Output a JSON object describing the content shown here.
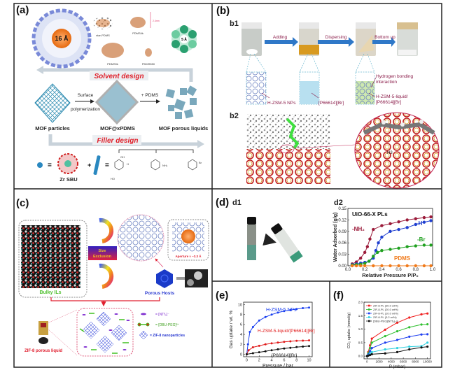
{
  "panel_a": {
    "label": "(a)",
    "pore_16": "16 Å",
    "pore_5": "5 Å",
    "star_pdms": "star-PDMS",
    "pdms4k": "PDMS4k",
    "pdms9k": "PDMS9k",
    "pdms550": "PDMS550",
    "scale": "2.4nm",
    "solvent_design": "Solvent design",
    "surface": "Surface",
    "polymerization": "polymerization",
    "plus_pdms": "+ PDMS",
    "mof_particles": "MOF particles",
    "mof_xpdms": "MOF@xPDMS",
    "mof_pl": "MOF porous liquids",
    "filler_design": "Filler design",
    "zr_sbu": "Zr SBU",
    "equals": "=",
    "plus": "+",
    "substituents": [
      "H",
      "NH₂",
      "Br"
    ],
    "oh": "OH",
    "ho": "HO"
  },
  "panel_b": {
    "label": "(b)",
    "b1": "b1",
    "b2": "b2",
    "adding": "Adding",
    "dispersing": "Dispersing",
    "bottom_up": "Bottom up",
    "hbond": "Hydrogen bonding",
    "hbond2": "interaction",
    "nps": "H-ZSM-5 NPs",
    "il": "[P66614][Br]",
    "liquid1": "H-ZSM-5-liquid/",
    "liquid2": "[P66614][Br]",
    "h3": "H3"
  },
  "panel_c": {
    "label": "(c)",
    "size": "Size",
    "exclusion": "Exclusion",
    "aperture": "Aperture ≈ ~3.3 Å",
    "bulky": "Bulky ILs",
    "hosts": "Porous Hosts",
    "zif_pl": "ZIF-8 porous liquid",
    "legend": [
      "= [NTf₂]⁻",
      "= [DBU-PEG]²⁺",
      "= ZIF-8 nanoparticles"
    ]
  },
  "panel_d": {
    "label": "(d)",
    "d1": "d1",
    "d2": "d2"
  },
  "panel_e": {
    "label": "(e)"
  },
  "panel_f": {
    "label": "(f)"
  },
  "chart_data": [
    {
      "id": "d2",
      "type": "line",
      "title": "UiO-66-X PLs",
      "xlabel": "Relative Pressure P/P₀",
      "ylabel": "Water Adsorbed (g/g)",
      "xlim": [
        0,
        1.0
      ],
      "ylim": [
        0,
        0.15
      ],
      "xticks": [
        0.0,
        0.2,
        0.4,
        0.6,
        0.8,
        1.0
      ],
      "xtick_labels": [
        "0.0",
        "0.2",
        "0.4",
        "0.6",
        "0.8",
        "1.0"
      ],
      "yticks": [
        0,
        0.03,
        0.06,
        0.09,
        0.12,
        0.15
      ],
      "ytick_labels": [
        "0.00",
        "0.03",
        "0.06",
        "0.09",
        "0.12",
        "0.15"
      ],
      "series": [
        {
          "name": "-NH₂",
          "color": "#9b1b3a",
          "x": [
            0.05,
            0.1,
            0.15,
            0.2,
            0.23,
            0.26,
            0.3,
            0.4,
            0.5,
            0.6,
            0.7,
            0.8,
            0.9,
            0.98
          ],
          "y": [
            0.005,
            0.01,
            0.02,
            0.035,
            0.05,
            0.07,
            0.095,
            0.105,
            0.11,
            0.115,
            0.12,
            0.123,
            0.126,
            0.128
          ]
        },
        {
          "name": "-H",
          "color": "#1f3fd0",
          "x": [
            0.05,
            0.1,
            0.15,
            0.2,
            0.25,
            0.3,
            0.33,
            0.36,
            0.4,
            0.5,
            0.6,
            0.7,
            0.8,
            0.9,
            0.98
          ],
          "y": [
            0.003,
            0.005,
            0.007,
            0.009,
            0.012,
            0.02,
            0.04,
            0.06,
            0.075,
            0.09,
            0.095,
            0.1,
            0.108,
            0.114,
            0.118
          ]
        },
        {
          "name": "-Br",
          "color": "#1fa01f",
          "x": [
            0.05,
            0.1,
            0.15,
            0.2,
            0.25,
            0.3,
            0.35,
            0.4,
            0.5,
            0.6,
            0.7,
            0.8,
            0.9,
            0.98
          ],
          "y": [
            0.002,
            0.003,
            0.004,
            0.006,
            0.012,
            0.025,
            0.035,
            0.04,
            0.043,
            0.046,
            0.05,
            0.052,
            0.054,
            0.054
          ]
        },
        {
          "name": "PDMS",
          "color": "#f07a1a",
          "x": [
            0.05,
            0.1,
            0.15,
            0.2,
            0.3,
            0.4,
            0.5,
            0.6,
            0.7,
            0.8,
            0.9,
            0.98
          ],
          "y": [
            0,
            0,
            0,
            0,
            0,
            0,
            0,
            0,
            0,
            0,
            0,
            0
          ]
        }
      ]
    },
    {
      "id": "e",
      "type": "line",
      "xlabel": "Pressure / bar",
      "ylabel": "Gas uptake / wt. %",
      "xlim": [
        -0.5,
        10.5
      ],
      "ylim": [
        -0.5,
        10.5
      ],
      "xticks": [
        0,
        2,
        4,
        6,
        8,
        10
      ],
      "xtick_labels": [
        "0",
        "2",
        "4",
        "6",
        "8",
        "10"
      ],
      "yticks": [
        0,
        2,
        4,
        6,
        8,
        10
      ],
      "ytick_labels": [
        "0",
        "2",
        "4",
        "6",
        "8",
        "10"
      ],
      "series": [
        {
          "name": "H-ZSM-5 NPs",
          "color": "#1a3ff0",
          "x": [
            0,
            0.2,
            0.5,
            1,
            2,
            3,
            4,
            5,
            6,
            7,
            8,
            9,
            10
          ],
          "y": [
            0,
            2,
            4.5,
            5.5,
            6.8,
            7.5,
            8,
            8.4,
            8.7,
            8.9,
            9.1,
            9.3,
            9.4
          ]
        },
        {
          "name": "H-ZSM-5-liquid/[P66614][Br]",
          "color": "#e01a1a",
          "x": [
            0,
            0.3,
            1,
            2,
            3,
            4,
            5,
            6,
            7,
            8,
            9,
            10
          ],
          "y": [
            0,
            0.8,
            1.4,
            1.7,
            2,
            2.2,
            2.35,
            2.5,
            2.6,
            2.7,
            2.75,
            2.8
          ]
        },
        {
          "name": "[P66614][Br]",
          "color": "#111111",
          "x": [
            0,
            1,
            2,
            3,
            4,
            5,
            6,
            7,
            8,
            9,
            10
          ],
          "y": [
            0,
            0.2,
            0.4,
            0.6,
            0.8,
            1,
            1.15,
            1.3,
            1.45,
            1.55,
            1.65
          ]
        }
      ]
    },
    {
      "id": "f",
      "type": "line",
      "xlabel": "P (mbar)",
      "ylabel": "CO₂ uptake (mmol/g)",
      "xlim": [
        -500,
        10500
      ],
      "ylim": [
        -0.1,
        2.0
      ],
      "xticks": [
        0,
        2000,
        4000,
        6000,
        8000,
        10000
      ],
      "xtick_labels": [
        "0",
        "2000",
        "4000",
        "6000",
        "8000",
        "10000"
      ],
      "yticks": [
        0,
        0.5,
        1.0,
        1.5,
        2.0
      ],
      "ytick_labels": [
        "0.0",
        "0.5",
        "1.0",
        "1.5",
        "2.0"
      ],
      "series": [
        {
          "name": "ZIF-8-PL (30.0 wt%)",
          "color": "#f02020",
          "x": [
            0,
            200,
            500,
            800,
            3000,
            5000,
            7000,
            9000,
            10000
          ],
          "y": [
            0,
            0.15,
            0.4,
            0.65,
            0.98,
            1.24,
            1.43,
            1.55,
            1.58
          ]
        },
        {
          "name": "ZIF-8-PL (20.0 wt%)",
          "color": "#30c030",
          "x": [
            0,
            200,
            500,
            800,
            3000,
            5000,
            7000,
            9000,
            10000
          ],
          "y": [
            0,
            0.1,
            0.3,
            0.5,
            0.74,
            0.92,
            1.07,
            1.17,
            1.18
          ]
        },
        {
          "name": "ZIF-8-PL (10.0 wt%)",
          "color": "#2040f0",
          "x": [
            0,
            200,
            500,
            800,
            3000,
            5000,
            7000,
            9000,
            10000
          ],
          "y": [
            0,
            0.06,
            0.18,
            0.3,
            0.5,
            0.6,
            0.72,
            0.8,
            0.81
          ]
        },
        {
          "name": "ZIF-8-PL (3.2 wt%)",
          "color": "#30d0e0",
          "x": [
            0,
            200,
            500,
            800,
            3000,
            5000,
            7000,
            9000,
            10000
          ],
          "y": [
            0,
            0.03,
            0.08,
            0.15,
            0.25,
            0.3,
            0.35,
            0.37,
            0.5
          ]
        },
        {
          "name": "[DBU-PEG][NTf₂]₂ IL",
          "color": "#111111",
          "x": [
            0,
            200,
            500,
            800,
            3000,
            5000,
            7000,
            9000,
            10000
          ],
          "y": [
            0,
            0.02,
            0.04,
            0.07,
            0.1,
            0.15,
            0.25,
            0.32,
            0.35
          ]
        }
      ]
    }
  ]
}
